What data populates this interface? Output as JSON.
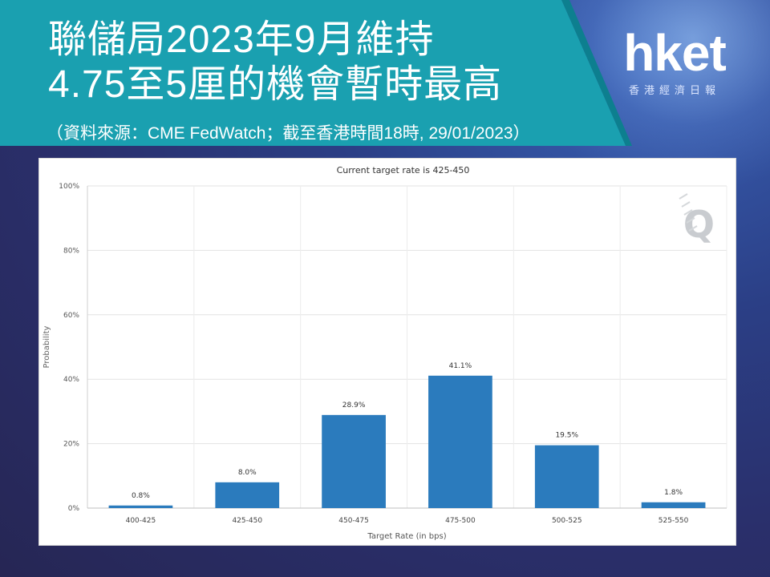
{
  "banner": {
    "title_line1": "聯儲局2023年9月維持",
    "title_line2": "4.75至5厘的機會暫時最高",
    "source": "（資料來源：CME FedWatch；截至香港時間18時, 29/01/2023）"
  },
  "logo": {
    "main": "hket",
    "sub": "香港經濟日報"
  },
  "chart_data": {
    "type": "bar",
    "title": "Current target rate is 425-450",
    "xlabel": "Target Rate (in bps)",
    "ylabel": "Probability",
    "categories": [
      "400-425",
      "425-450",
      "450-475",
      "475-500",
      "500-525",
      "525-550"
    ],
    "values": [
      0.8,
      8.0,
      28.9,
      41.1,
      19.5,
      1.8
    ],
    "data_labels": [
      "0.8%",
      "8.0%",
      "28.9%",
      "41.1%",
      "19.5%",
      "1.8%"
    ],
    "ylim": [
      0,
      100
    ],
    "yticks": [
      "0%",
      "20%",
      "40%",
      "60%",
      "80%",
      "100%"
    ],
    "ytick_values": [
      0,
      20,
      40,
      60,
      80,
      100
    ],
    "grid": true,
    "bar_color": "#2b7bbd"
  },
  "watermark": "Q"
}
